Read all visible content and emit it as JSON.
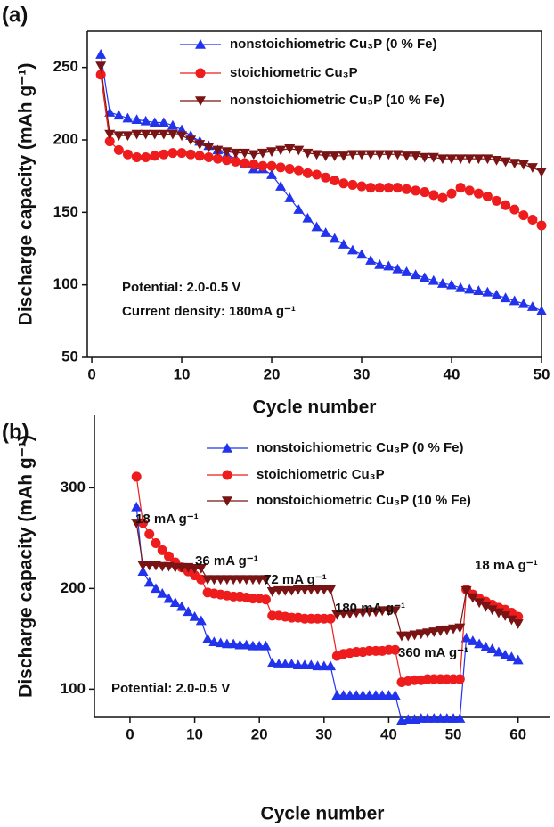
{
  "chart_data": [
    {
      "type": "line",
      "panel_label": "(a)",
      "x_label": "Cycle number",
      "y_label": "Discharge capacity (mAh g⁻¹)",
      "xlim": [
        -0.5,
        50
      ],
      "ylim": [
        50,
        275
      ],
      "xticks": [
        0,
        10,
        20,
        30,
        40,
        50
      ],
      "yticks": [
        50,
        100,
        150,
        200,
        250
      ],
      "annotations": [
        "Potential: 2.0-0.5 V",
        "Current density: 180mA g⁻¹"
      ],
      "x": [
        1,
        2,
        3,
        4,
        5,
        6,
        7,
        8,
        9,
        10,
        11,
        12,
        13,
        14,
        15,
        16,
        17,
        18,
        19,
        20,
        21,
        22,
        23,
        24,
        25,
        26,
        27,
        28,
        29,
        30,
        31,
        32,
        33,
        34,
        35,
        36,
        37,
        38,
        39,
        40,
        41,
        42,
        43,
        44,
        45,
        46,
        47,
        48,
        49,
        50
      ],
      "series": [
        {
          "name": "nonstoichiometric Cu₃P (0 % Fe)",
          "color": "#2233ee",
          "marker": "triangle-up",
          "values": [
            259,
            219,
            217,
            215,
            214,
            213,
            212,
            212,
            210,
            207,
            203,
            199,
            196,
            193,
            190,
            187,
            184,
            180,
            180,
            176,
            168,
            160,
            152,
            146,
            140,
            136,
            132,
            128,
            124,
            121,
            117,
            114,
            113,
            111,
            109,
            107,
            105,
            103,
            101,
            100,
            98,
            97,
            96,
            95,
            93,
            91,
            89,
            87,
            85,
            82
          ]
        },
        {
          "name": "stoichiometric Cu₃P",
          "color": "#ee1c1c",
          "marker": "circle",
          "values": [
            245,
            199,
            193,
            190,
            188,
            188,
            189,
            190,
            191,
            191,
            190,
            189,
            188,
            187,
            186,
            185,
            184,
            183,
            182,
            182,
            181,
            180,
            179,
            177,
            176,
            174,
            172,
            170,
            169,
            168,
            167,
            167,
            167,
            167,
            166,
            165,
            164,
            162,
            160,
            163,
            167,
            165,
            163,
            161,
            158,
            155,
            152,
            148,
            145,
            141
          ]
        },
        {
          "name": "nonstoichiometric Cu₃P (10 % Fe)",
          "color": "#7a1414",
          "marker": "triangle-down",
          "values": [
            251,
            204,
            203,
            203,
            204,
            204,
            204,
            204,
            204,
            203,
            200,
            197,
            195,
            193,
            192,
            191,
            191,
            190,
            191,
            192,
            193,
            194,
            193,
            191,
            190,
            189,
            189,
            189,
            190,
            190,
            190,
            190,
            190,
            190,
            189,
            189,
            188,
            188,
            187,
            187,
            187,
            187,
            187,
            187,
            186,
            185,
            184,
            183,
            181,
            178
          ]
        }
      ]
    },
    {
      "type": "line",
      "panel_label": "(b)",
      "x_label": "Cycle number",
      "y_label": "Discharge capacity (mAh g⁻¹)",
      "xlim": [
        -5.5,
        65
      ],
      "ylim": [
        72,
        372
      ],
      "xticks": [
        0,
        10,
        20,
        30,
        40,
        50,
        60
      ],
      "yticks": [
        100,
        200,
        300
      ],
      "annotations": [
        "18 mA g⁻¹",
        "36 mA g⁻¹",
        "72 mA g⁻¹",
        "180 mA g⁻¹",
        "360 mA g⁻¹",
        "18 mA g⁻¹",
        "Potential: 2.0-0.5 V"
      ],
      "x": [
        1,
        2,
        3,
        4,
        5,
        6,
        7,
        8,
        9,
        10,
        11,
        12,
        13,
        14,
        15,
        16,
        17,
        18,
        19,
        20,
        21,
        22,
        23,
        24,
        25,
        26,
        27,
        28,
        29,
        30,
        31,
        32,
        33,
        34,
        35,
        36,
        37,
        38,
        39,
        40,
        41,
        42,
        43,
        44,
        45,
        46,
        47,
        48,
        49,
        50,
        51,
        52,
        53,
        54,
        55,
        56,
        57,
        58,
        59,
        60
      ],
      "series": [
        {
          "name": "nonstoichiometric Cu₃P (0 % Fe)",
          "color": "#2233ee",
          "marker": "triangle-up",
          "values": [
            281,
            217,
            206,
            200,
            195,
            190,
            186,
            182,
            177,
            172,
            168,
            150,
            147,
            146,
            145,
            145,
            144,
            144,
            143,
            143,
            143,
            126,
            125,
            125,
            125,
            124,
            124,
            124,
            123,
            123,
            123,
            94,
            94,
            94,
            94,
            94,
            94,
            94,
            94,
            94,
            94,
            69,
            70,
            70,
            71,
            71,
            71,
            71,
            71,
            71,
            71,
            151,
            148,
            145,
            142,
            140,
            137,
            134,
            132,
            129
          ]
        },
        {
          "name": "stoichiometric Cu₃P",
          "color": "#ee1c1c",
          "marker": "circle",
          "values": [
            311,
            265,
            254,
            245,
            238,
            232,
            226,
            221,
            217,
            213,
            209,
            196,
            195,
            194,
            193,
            192,
            192,
            191,
            190,
            190,
            189,
            173,
            173,
            172,
            171,
            171,
            170,
            170,
            170,
            170,
            170,
            133,
            135,
            136,
            137,
            137,
            138,
            138,
            138,
            139,
            139,
            107,
            108,
            109,
            109,
            110,
            110,
            110,
            110,
            110,
            110,
            199,
            194,
            190,
            187,
            184,
            181,
            179,
            176,
            172
          ]
        },
        {
          "name": "nonstoichiometric Cu₃P (10 % Fe)",
          "color": "#7a1414",
          "marker": "triangle-down",
          "values": [
            265,
            223,
            223,
            223,
            222,
            222,
            221,
            221,
            221,
            220,
            220,
            209,
            209,
            209,
            209,
            209,
            209,
            209,
            209,
            209,
            209,
            197,
            198,
            198,
            198,
            199,
            199,
            199,
            199,
            199,
            199,
            174,
            175,
            175,
            176,
            176,
            177,
            177,
            178,
            178,
            178,
            153,
            153,
            154,
            155,
            156,
            157,
            158,
            159,
            160,
            161,
            198,
            191,
            186,
            182,
            179,
            176,
            173,
            169,
            165
          ]
        }
      ]
    }
  ]
}
